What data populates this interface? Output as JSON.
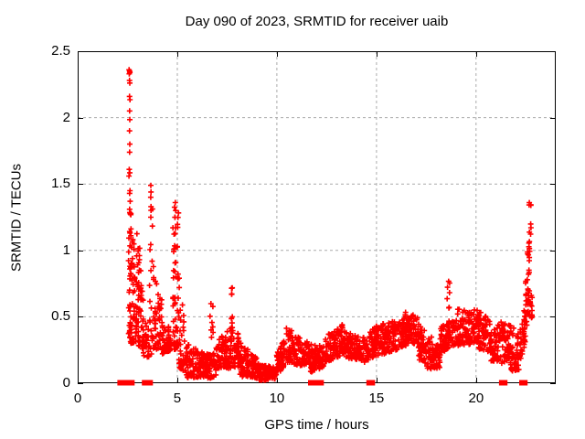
{
  "chart_data": {
    "type": "scatter",
    "title": "Day 090 of 2023, SRMTID for receiver uaib",
    "xlabel": "GPS time / hours",
    "ylabel": "SRMTID / TECUs",
    "xlim": [
      0,
      24
    ],
    "ylim": [
      0,
      2.5
    ],
    "grid": true,
    "legend": false,
    "marker": {
      "shape": "plus",
      "color": "#ff0000",
      "size": 7
    },
    "zero_marker": {
      "shape": "square",
      "color": "#ff0000",
      "size": 6
    },
    "grid_color": "#aaaaaa",
    "border_color": "#000000",
    "xticks": [
      {
        "v": 0,
        "label": "0"
      },
      {
        "v": 5,
        "label": "5"
      },
      {
        "v": 10,
        "label": "10"
      },
      {
        "v": 15,
        "label": "15"
      },
      {
        "v": 20,
        "label": "20"
      }
    ],
    "yticks": [
      {
        "v": 0,
        "label": "0"
      },
      {
        "v": 0.5,
        "label": "0.5"
      },
      {
        "v": 1,
        "label": "1"
      },
      {
        "v": 1.5,
        "label": "1.5"
      },
      {
        "v": 2,
        "label": "2"
      },
      {
        "v": 2.5,
        "label": "2.5"
      }
    ],
    "band_format": "[t_start, t_end, y_lo_start, y_hi_start, y_lo_end, y_hi_end, n_points, low_bias]",
    "bands": [
      [
        2.55,
        2.68,
        0.25,
        1.3,
        0.25,
        1.3,
        30,
        1.0
      ],
      [
        2.62,
        2.95,
        0.28,
        1.25,
        0.3,
        0.95,
        55,
        1.5
      ],
      [
        2.95,
        3.3,
        0.28,
        1.18,
        0.25,
        0.6,
        50,
        1.5
      ],
      [
        3.02,
        3.22,
        0.5,
        1.18,
        0.5,
        1.18,
        10,
        1.0
      ],
      [
        3.3,
        3.58,
        0.18,
        0.5,
        0.2,
        0.42,
        28,
        1.3
      ],
      [
        3.6,
        3.82,
        0.22,
        1.5,
        0.22,
        1.5,
        26,
        1.6
      ],
      [
        3.85,
        4.25,
        0.25,
        0.8,
        0.25,
        0.62,
        45,
        1.3
      ],
      [
        4.25,
        4.7,
        0.22,
        0.5,
        0.25,
        0.4,
        45,
        1.3
      ],
      [
        4.78,
        5.08,
        0.25,
        1.36,
        0.25,
        1.36,
        60,
        1.5
      ],
      [
        5.08,
        5.45,
        0.12,
        0.85,
        0.08,
        0.35,
        42,
        1.8
      ],
      [
        5.45,
        6.45,
        0.04,
        0.3,
        0.05,
        0.22,
        115,
        1.4
      ],
      [
        6.45,
        6.95,
        0.03,
        0.22,
        0.05,
        0.25,
        58,
        1.3
      ],
      [
        6.62,
        6.8,
        0.3,
        0.65,
        0.3,
        0.65,
        8,
        1.0
      ],
      [
        6.95,
        7.45,
        0.1,
        0.38,
        0.12,
        0.35,
        58,
        1.3
      ],
      [
        7.45,
        8.1,
        0.1,
        0.42,
        0.12,
        0.4,
        75,
        1.4
      ],
      [
        7.7,
        7.82,
        0.33,
        0.72,
        0.33,
        0.72,
        12,
        1.1
      ],
      [
        8.1,
        9.1,
        0.05,
        0.33,
        0.03,
        0.17,
        115,
        1.4
      ],
      [
        9.1,
        9.95,
        0.02,
        0.14,
        0.03,
        0.12,
        98,
        1.2
      ],
      [
        9.95,
        10.45,
        0.05,
        0.2,
        0.14,
        0.4,
        56,
        1.3
      ],
      [
        10.45,
        10.95,
        0.15,
        0.42,
        0.14,
        0.38,
        56,
        1.3
      ],
      [
        10.95,
        11.65,
        0.13,
        0.36,
        0.14,
        0.3,
        78,
        1.3
      ],
      [
        11.65,
        12.35,
        0.08,
        0.3,
        0.12,
        0.28,
        78,
        1.3
      ],
      [
        12.35,
        13.4,
        0.15,
        0.34,
        0.22,
        0.46,
        115,
        1.3
      ],
      [
        13.4,
        14.3,
        0.19,
        0.42,
        0.17,
        0.35,
        100,
        1.3
      ],
      [
        14.3,
        14.98,
        0.15,
        0.38,
        0.2,
        0.43,
        75,
        1.3
      ],
      [
        14.99,
        15.06,
        0.27,
        0.51,
        0.27,
        0.51,
        8,
        1.0
      ],
      [
        14.98,
        16.35,
        0.2,
        0.44,
        0.27,
        0.48,
        150,
        1.3
      ],
      [
        16.35,
        17.1,
        0.28,
        0.54,
        0.3,
        0.5,
        85,
        1.3
      ],
      [
        17.1,
        17.5,
        0.18,
        0.46,
        0.15,
        0.4,
        45,
        1.3
      ],
      [
        17.5,
        18.2,
        0.09,
        0.38,
        0.12,
        0.3,
        78,
        1.3
      ],
      [
        18.52,
        18.68,
        0.3,
        0.78,
        0.3,
        0.78,
        13,
        1.3
      ],
      [
        18.2,
        19.05,
        0.22,
        0.42,
        0.3,
        0.5,
        92,
        1.3
      ],
      [
        19.05,
        20.1,
        0.28,
        0.56,
        0.3,
        0.55,
        115,
        1.3
      ],
      [
        20.1,
        20.75,
        0.26,
        0.55,
        0.22,
        0.48,
        72,
        1.3
      ],
      [
        20.75,
        21.15,
        0.16,
        0.42,
        0.17,
        0.44,
        45,
        1.3
      ],
      [
        21.15,
        21.7,
        0.14,
        0.5,
        0.18,
        0.46,
        60,
        1.3
      ],
      [
        21.7,
        22.18,
        0.08,
        0.45,
        0.1,
        0.36,
        52,
        1.4
      ],
      [
        22.18,
        22.48,
        0.14,
        0.42,
        0.3,
        0.62,
        35,
        1.2
      ],
      [
        22.48,
        22.68,
        0.32,
        0.85,
        0.6,
        1.2,
        30,
        1.1
      ],
      [
        22.64,
        22.76,
        0.9,
        1.37,
        0.9,
        1.37,
        14,
        1.0
      ],
      [
        22.62,
        22.82,
        0.45,
        0.8,
        0.5,
        0.65,
        14,
        1.2
      ]
    ],
    "explicit_points": [
      [
        2.58,
        2.36
      ],
      [
        2.605,
        2.35
      ],
      [
        2.62,
        2.34
      ],
      [
        2.59,
        2.33
      ],
      [
        2.6,
        2.28
      ],
      [
        2.615,
        2.26
      ],
      [
        2.6,
        2.16
      ],
      [
        2.625,
        2.135
      ],
      [
        2.605,
        2.05
      ],
      [
        2.615,
        1.985
      ],
      [
        2.6,
        1.9
      ],
      [
        2.615,
        1.8
      ],
      [
        2.605,
        1.74
      ],
      [
        2.59,
        1.61
      ],
      [
        2.615,
        1.585
      ],
      [
        2.575,
        1.56
      ],
      [
        2.625,
        1.45
      ],
      [
        2.605,
        1.43
      ],
      [
        2.635,
        1.37
      ],
      [
        2.605,
        1.31
      ],
      [
        3.67,
        1.49
      ],
      [
        3.68,
        1.44
      ],
      [
        3.665,
        1.4
      ],
      [
        3.68,
        1.33
      ],
      [
        3.67,
        1.25
      ],
      [
        4.9,
        1.36
      ],
      [
        4.92,
        1.3
      ],
      [
        4.88,
        1.25
      ],
      [
        4.91,
        1.17
      ]
    ],
    "zero_runs": [
      [
        2.13,
        2.31
      ],
      [
        2.4,
        2.72
      ],
      [
        3.36,
        3.64
      ],
      [
        11.7,
        11.85
      ],
      [
        12.06,
        12.22
      ],
      [
        14.63,
        14.79
      ],
      [
        21.29,
        21.44
      ],
      [
        22.3,
        22.45
      ]
    ]
  }
}
